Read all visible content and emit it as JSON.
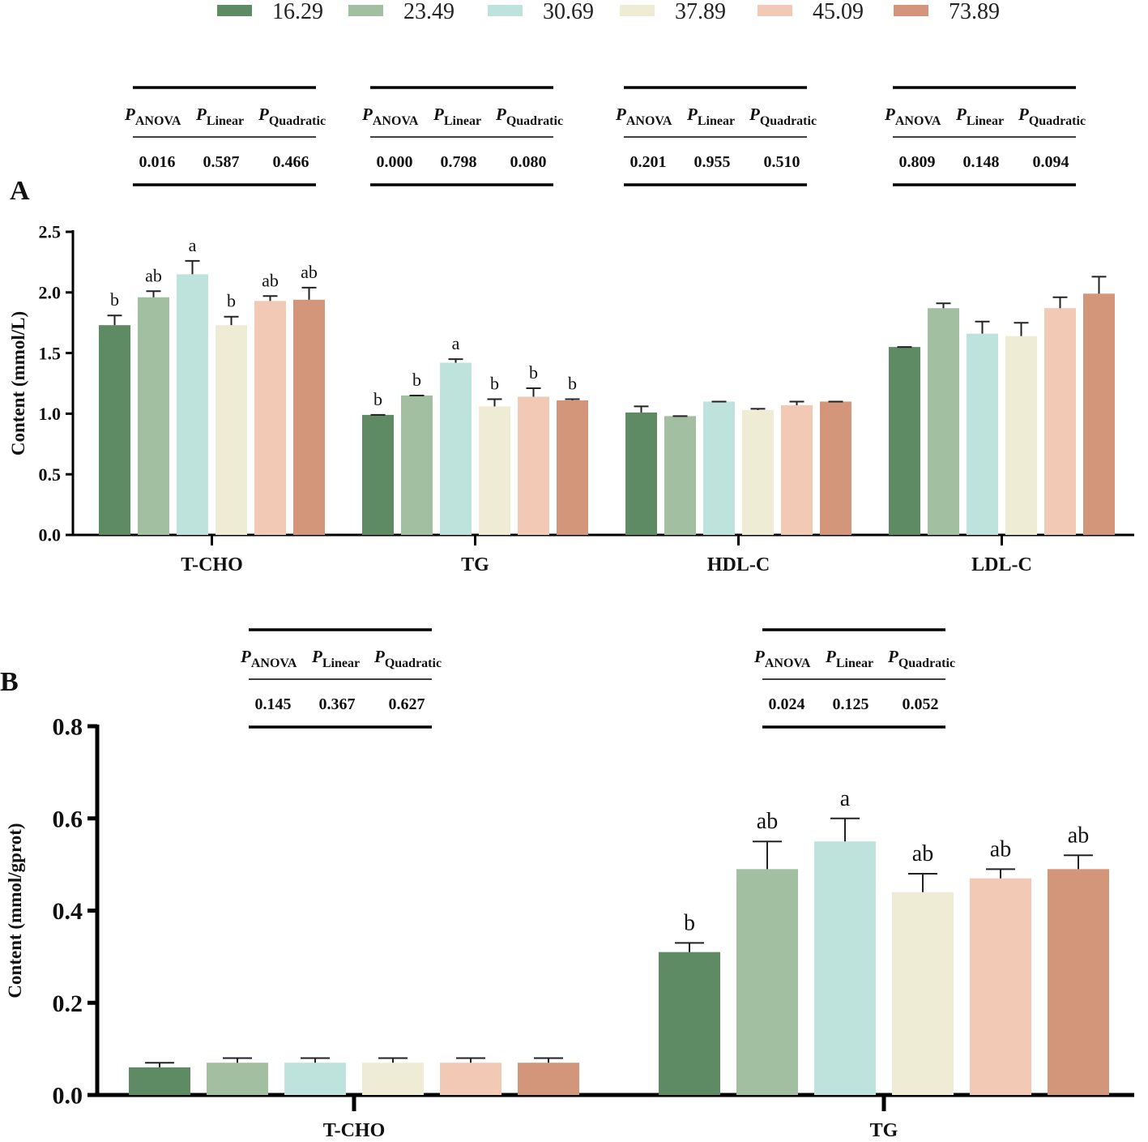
{
  "legend": {
    "entries": [
      "16.29",
      "23.49",
      "30.69",
      "37.89",
      "45.09",
      "73.89"
    ],
    "colors": [
      "#5e8a64",
      "#a2bfa1",
      "#bee3dc",
      "#efecd6",
      "#f1c9b4",
      "#d3967a"
    ]
  },
  "stats_headers": {
    "p": "P",
    "anova": "ANOVA",
    "linear": "Linear",
    "quadratic": "Quadratic"
  },
  "chart_data": [
    {
      "panel": "A",
      "type": "bar",
      "ylabel": "Content (mmol/L)",
      "ylim": [
        0,
        2.5
      ],
      "yticks": [
        "0.0",
        "0.5",
        "1.0",
        "1.5",
        "2.0",
        "2.5"
      ],
      "categories": [
        "T-CHO",
        "TG",
        "HDL-C",
        "LDL-C"
      ],
      "series": [
        {
          "name": "16.29",
          "values": [
            1.73,
            0.99,
            1.01,
            1.55
          ],
          "errors": [
            0.08,
            0.0,
            0.05,
            0.0
          ],
          "letters": [
            "b",
            "b",
            "",
            ""
          ]
        },
        {
          "name": "23.49",
          "values": [
            1.96,
            1.15,
            0.98,
            1.87
          ],
          "errors": [
            0.05,
            0.0,
            0.0,
            0.04
          ],
          "letters": [
            "ab",
            "b",
            "",
            ""
          ]
        },
        {
          "name": "30.69",
          "values": [
            2.15,
            1.42,
            1.1,
            1.66
          ],
          "errors": [
            0.11,
            0.03,
            0.0,
            0.1
          ],
          "letters": [
            "a",
            "a",
            "",
            ""
          ]
        },
        {
          "name": "37.89",
          "values": [
            1.73,
            1.06,
            1.03,
            1.64
          ],
          "errors": [
            0.07,
            0.06,
            0.01,
            0.11
          ],
          "letters": [
            "b",
            "b",
            "",
            ""
          ]
        },
        {
          "name": "45.09",
          "values": [
            1.93,
            1.14,
            1.07,
            1.87
          ],
          "errors": [
            0.04,
            0.07,
            0.03,
            0.09
          ],
          "letters": [
            "ab",
            "b",
            "",
            ""
          ]
        },
        {
          "name": "73.89",
          "values": [
            1.94,
            1.11,
            1.1,
            1.99
          ],
          "errors": [
            0.1,
            0.01,
            0.0,
            0.14
          ],
          "letters": [
            "ab",
            "b",
            "",
            ""
          ]
        }
      ],
      "stats": [
        {
          "anova": "0.016",
          "linear": "0.587",
          "quadratic": "0.466"
        },
        {
          "anova": "0.000",
          "linear": "0.798",
          "quadratic": "0.080"
        },
        {
          "anova": "0.201",
          "linear": "0.955",
          "quadratic": "0.510"
        },
        {
          "anova": "0.809",
          "linear": "0.148",
          "quadratic": "0.094"
        }
      ]
    },
    {
      "panel": "B",
      "type": "bar",
      "ylabel": "Content (mmol/gprot)",
      "ylim": [
        0,
        0.8
      ],
      "yticks": [
        "0.0",
        "0.2",
        "0.4",
        "0.6",
        "0.8"
      ],
      "categories": [
        "T-CHO",
        "TG"
      ],
      "series": [
        {
          "name": "16.29",
          "values": [
            0.06,
            0.31
          ],
          "errors": [
            0.01,
            0.02
          ],
          "letters": [
            "",
            "b"
          ]
        },
        {
          "name": "23.49",
          "values": [
            0.07,
            0.49
          ],
          "errors": [
            0.01,
            0.06
          ],
          "letters": [
            "",
            "ab"
          ]
        },
        {
          "name": "30.69",
          "values": [
            0.07,
            0.55
          ],
          "errors": [
            0.01,
            0.05
          ],
          "letters": [
            "",
            "a"
          ]
        },
        {
          "name": "37.89",
          "values": [
            0.07,
            0.44
          ],
          "errors": [
            0.01,
            0.04
          ],
          "letters": [
            "",
            "ab"
          ]
        },
        {
          "name": "45.09",
          "values": [
            0.07,
            0.47
          ],
          "errors": [
            0.01,
            0.02
          ],
          "letters": [
            "",
            "ab"
          ]
        },
        {
          "name": "73.89",
          "values": [
            0.07,
            0.49
          ],
          "errors": [
            0.01,
            0.03
          ],
          "letters": [
            "",
            "ab"
          ]
        }
      ],
      "stats": [
        {
          "anova": "0.145",
          "linear": "0.367",
          "quadratic": "0.627"
        },
        {
          "anova": "0.024",
          "linear": "0.125",
          "quadratic": "0.052"
        }
      ]
    }
  ]
}
